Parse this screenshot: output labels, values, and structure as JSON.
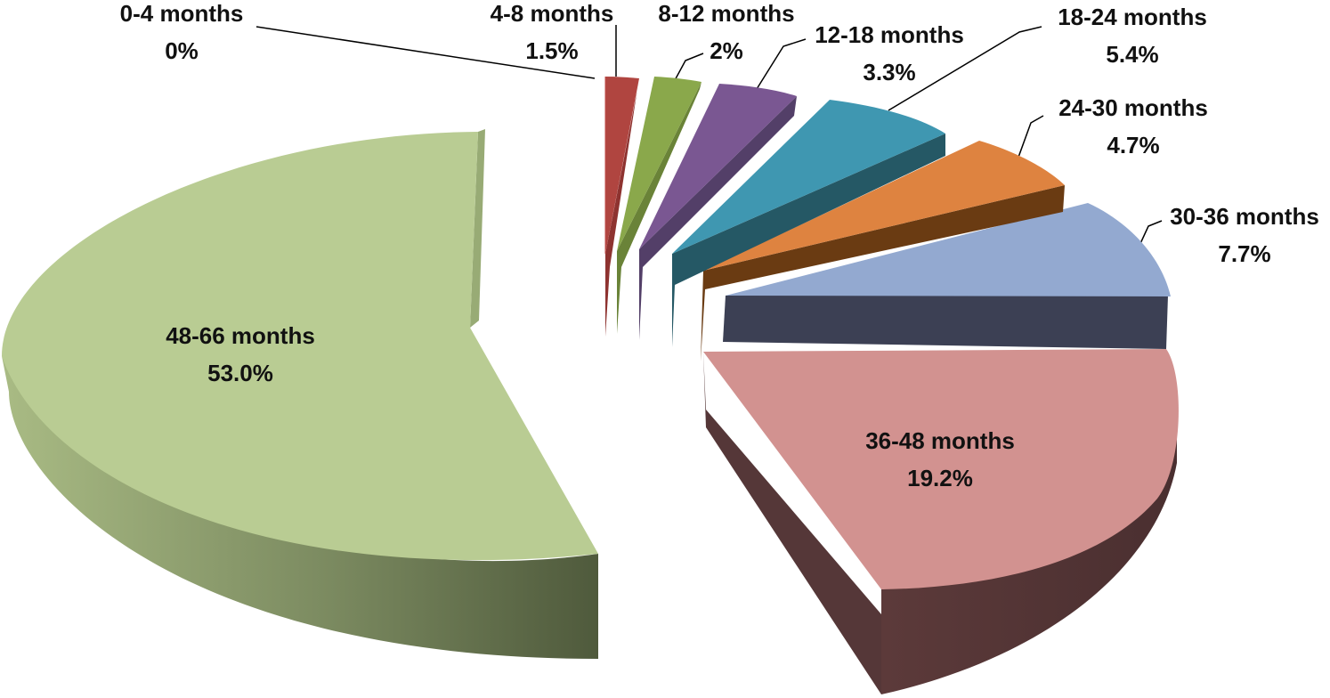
{
  "chart_data": {
    "type": "pie",
    "style": "3d-exploded",
    "title": "",
    "legend": "none",
    "slices": [
      {
        "label": "0-4 months",
        "value_label": "0%",
        "value": 0.0,
        "color": "#c0504d"
      },
      {
        "label": "4-8 months",
        "value_label": "1.5%",
        "value": 1.5,
        "color": "#b04540"
      },
      {
        "label": "8-12 months",
        "value_label": "2%",
        "value": 2.0,
        "color": "#8aa84b"
      },
      {
        "label": "12-18 months",
        "value_label": "3.3%",
        "value": 3.3,
        "color": "#7a5792"
      },
      {
        "label": "18-24 months",
        "value_label": "5.4%",
        "value": 5.4,
        "color": "#3f97b1"
      },
      {
        "label": "24-30 months",
        "value_label": "4.7%",
        "value": 4.7,
        "color": "#de8340"
      },
      {
        "label": "30-36 months",
        "value_label": "7.7%",
        "value": 7.7,
        "color": "#93a9d0"
      },
      {
        "label": "36-48 months",
        "value_label": "19.2%",
        "value": 19.2,
        "color": "#d29290"
      },
      {
        "label": "48-66 months",
        "value_label": "53.0%",
        "value": 53.0,
        "color": "#b9cc93"
      }
    ]
  }
}
